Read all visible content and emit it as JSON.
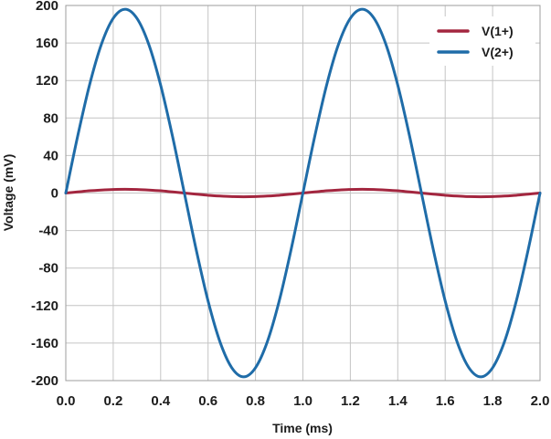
{
  "chart_data": {
    "type": "line",
    "title": "",
    "xlabel": "Time (ms)",
    "ylabel": "Voltage (mV)",
    "xlim": [
      0,
      2.0
    ],
    "ylim": [
      -200,
      200
    ],
    "x_ticks": [
      "0.0",
      "0.2",
      "0.4",
      "0.6",
      "0.8",
      "1.0",
      "1.2",
      "1.4",
      "1.6",
      "1.8",
      "2.0"
    ],
    "y_ticks": [
      "200",
      "160",
      "120",
      "80",
      "40",
      "0",
      "-40",
      "-80",
      "-120",
      "-160",
      "-200"
    ],
    "grid": true,
    "legend_position": "top-right",
    "x": [
      0,
      0.05,
      0.1,
      0.15,
      0.2,
      0.25,
      0.3,
      0.35,
      0.4,
      0.45,
      0.5,
      0.55,
      0.6,
      0.65,
      0.7,
      0.75,
      0.8,
      0.85,
      0.9,
      0.95,
      1.0,
      1.05,
      1.1,
      1.15,
      1.2,
      1.25,
      1.3,
      1.35,
      1.4,
      1.45,
      1.5,
      1.55,
      1.6,
      1.65,
      1.7,
      1.75,
      1.8,
      1.85,
      1.9,
      1.95,
      2.0
    ],
    "series": [
      {
        "name": "V(1+)",
        "color": "#a3263f",
        "values": [
          0,
          1.2,
          2.4,
          3.2,
          3.8,
          4,
          3.8,
          3.2,
          2.4,
          1.2,
          0,
          -1.2,
          -2.4,
          -3.2,
          -3.8,
          -4,
          -3.8,
          -3.2,
          -2.4,
          -1.2,
          0,
          1.2,
          2.4,
          3.2,
          3.8,
          4,
          3.8,
          3.2,
          2.4,
          1.2,
          0,
          -1.2,
          -2.4,
          -3.2,
          -3.8,
          -4,
          -3.8,
          -3.2,
          -2.4,
          -1.2,
          0
        ]
      },
      {
        "name": "V(2+)",
        "color": "#1f6ca8",
        "values": [
          0,
          60.5,
          115.1,
          158.5,
          186.3,
          196,
          186.3,
          158.5,
          115.1,
          60.5,
          0,
          -60.5,
          -115.1,
          -158.5,
          -186.3,
          -196,
          -186.3,
          -158.5,
          -115.1,
          -60.5,
          0,
          60.5,
          115.1,
          158.5,
          186.3,
          196,
          186.3,
          158.5,
          115.1,
          60.5,
          0,
          -60.5,
          -115.1,
          -158.5,
          -186.3,
          -196,
          -186.3,
          -158.5,
          -115.1,
          -60.5,
          0
        ]
      }
    ]
  }
}
